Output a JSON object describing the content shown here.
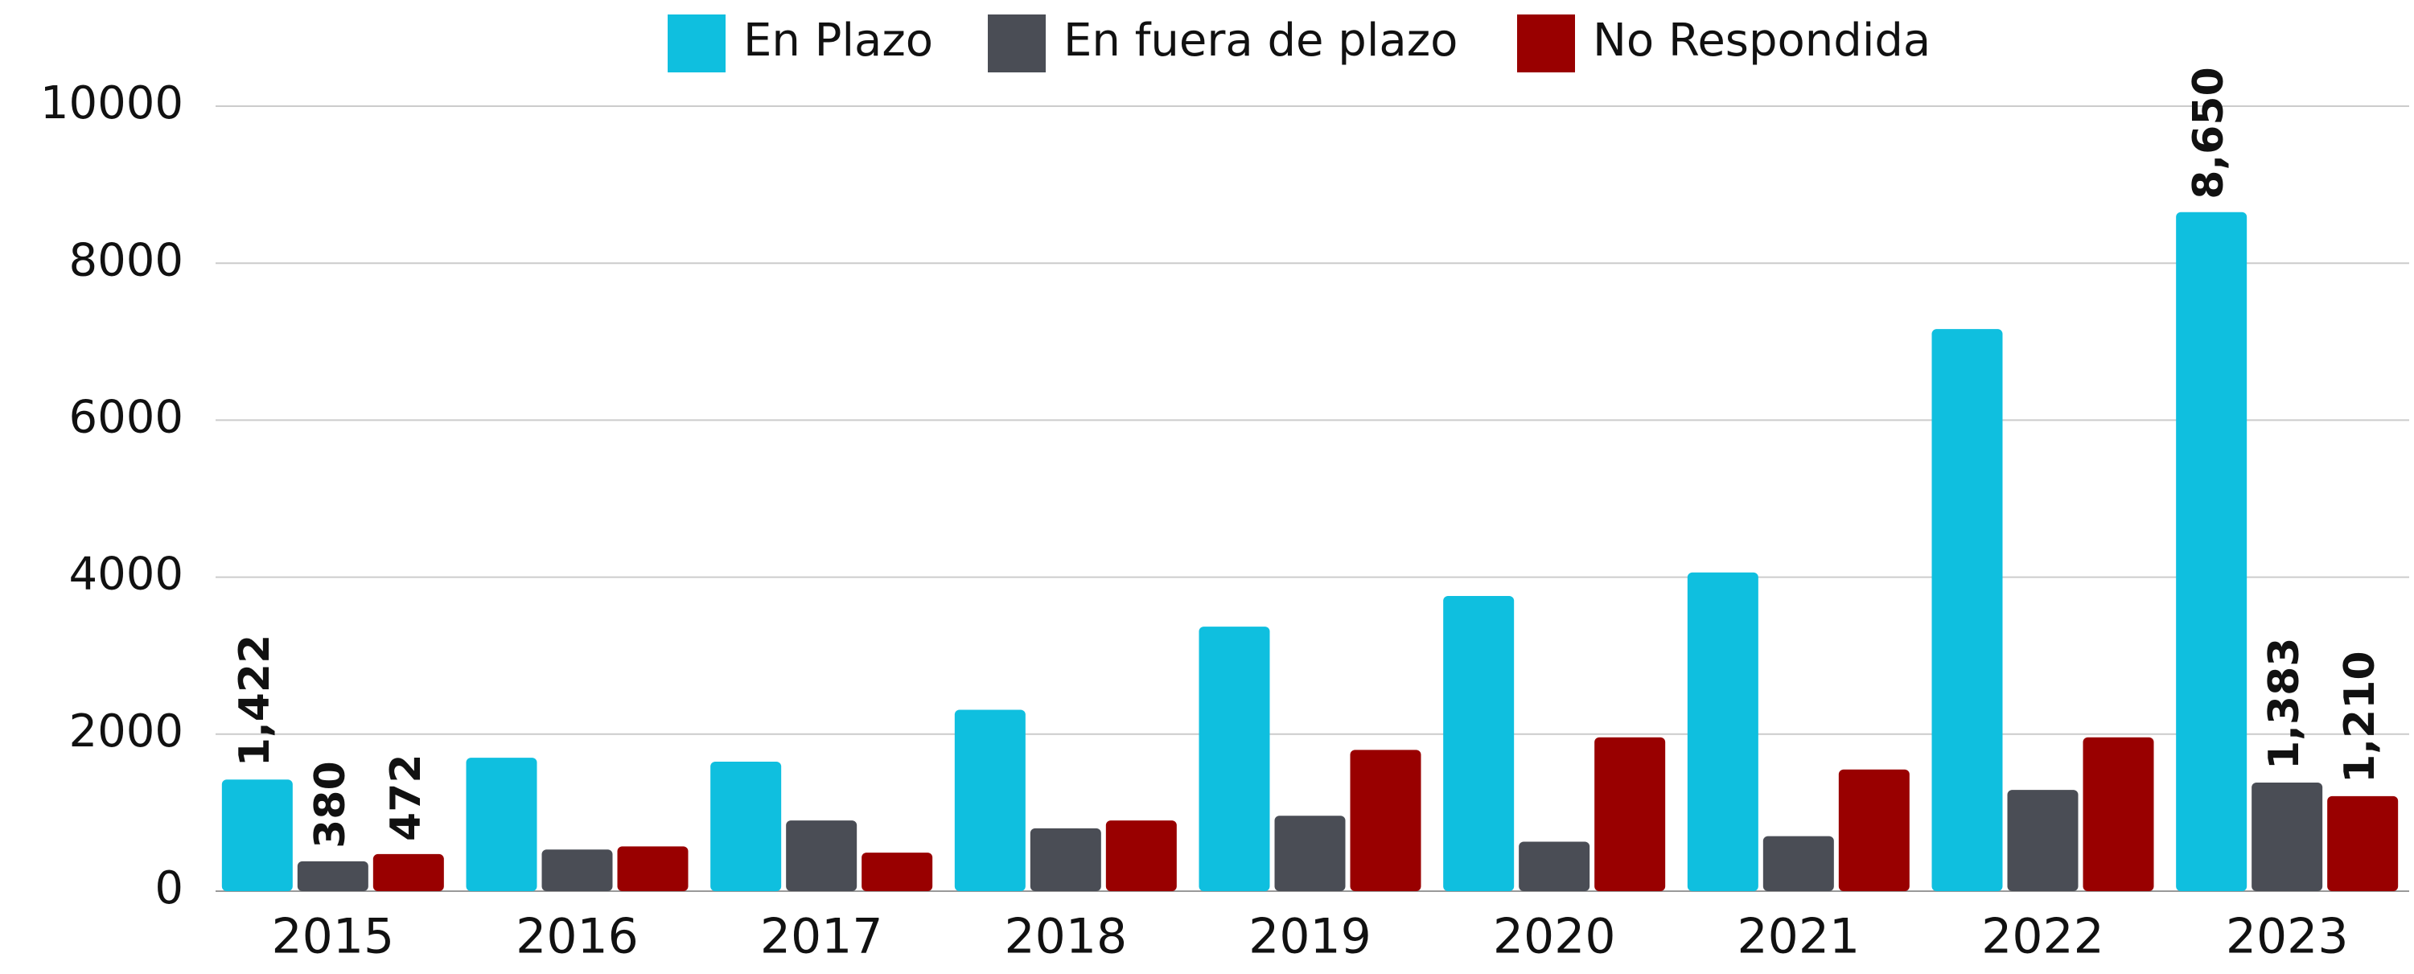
{
  "chart_data": {
    "type": "bar",
    "categories": [
      "2015",
      "2016",
      "2017",
      "2018",
      "2019",
      "2020",
      "2021",
      "2022",
      "2023"
    ],
    "series": [
      {
        "name": "En Plazo",
        "color": "#0fbfdf",
        "values": [
          1422,
          1700,
          1650,
          2310,
          3370,
          3760,
          4060,
          7160,
          8650
        ],
        "value_labels": [
          "1,422",
          null,
          null,
          null,
          null,
          null,
          null,
          null,
          "8,650"
        ]
      },
      {
        "name": "En fuera de plazo",
        "color": "#4a4d55",
        "values": [
          380,
          530,
          900,
          800,
          960,
          630,
          700,
          1290,
          1383
        ],
        "value_labels": [
          "380",
          null,
          null,
          null,
          null,
          null,
          null,
          null,
          "1,383"
        ]
      },
      {
        "name": "No Respondida",
        "color": "#990000",
        "values": [
          472,
          570,
          490,
          900,
          1800,
          1960,
          1550,
          1960,
          1210
        ],
        "value_labels": [
          "472",
          null,
          null,
          null,
          null,
          null,
          null,
          null,
          "1,210"
        ]
      }
    ],
    "ylim": [
      0,
      10000
    ],
    "yticks": [
      0,
      2000,
      4000,
      6000,
      8000,
      10000
    ],
    "grid": true,
    "legend": "top"
  }
}
